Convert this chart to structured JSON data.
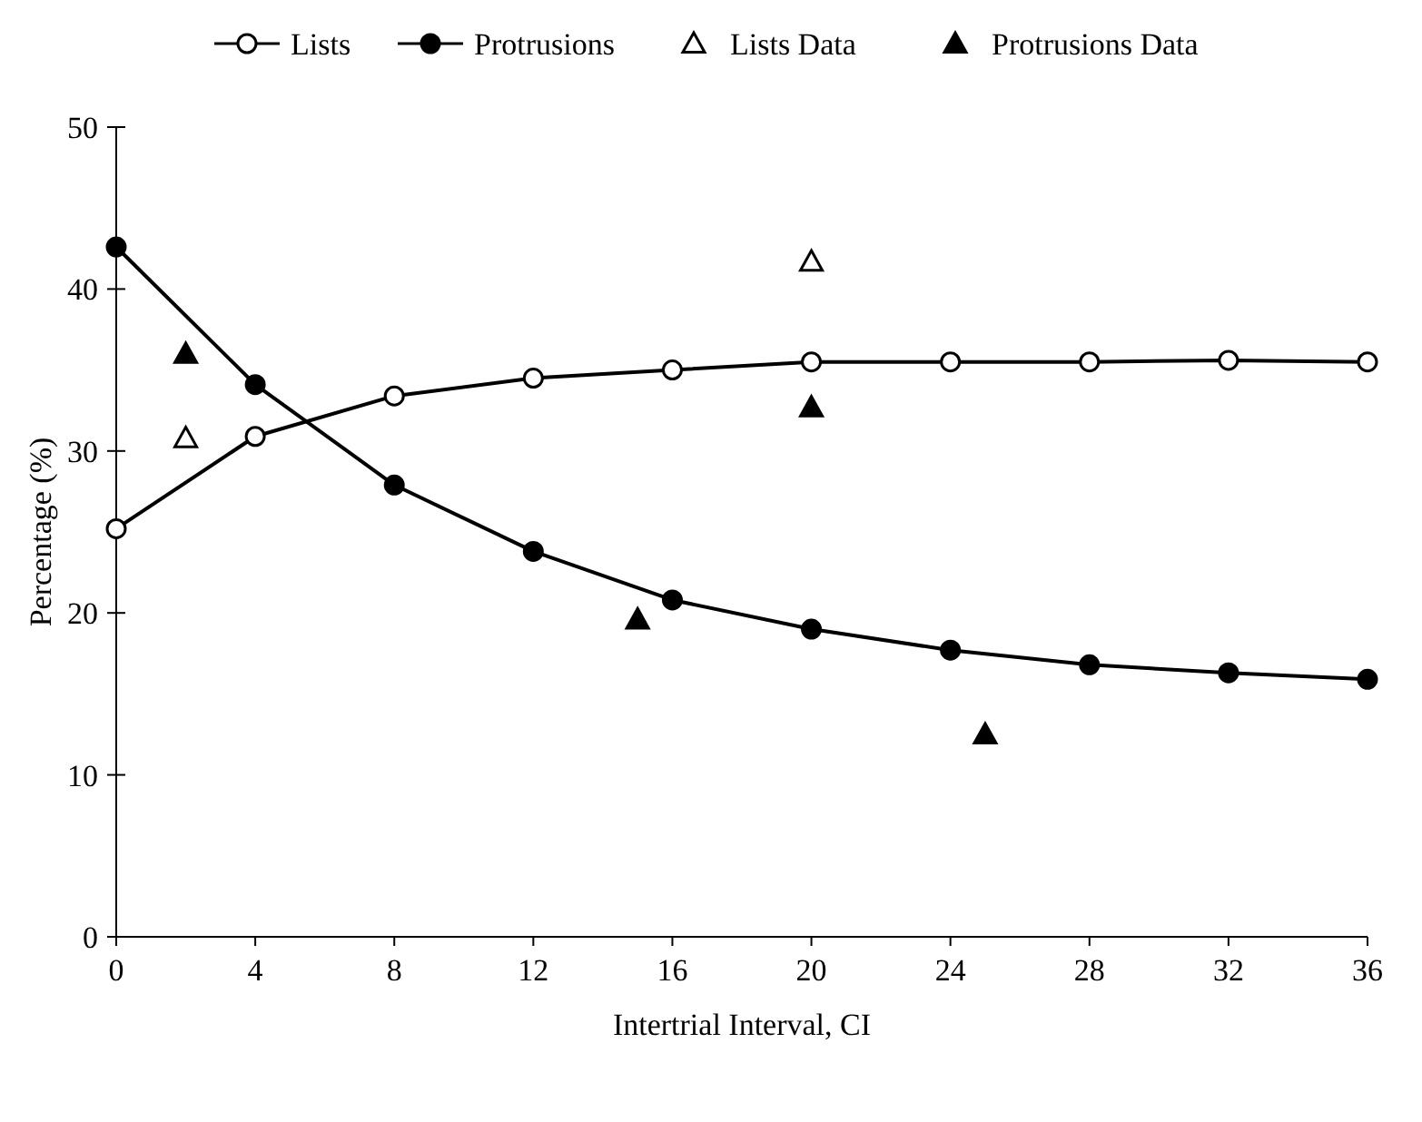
{
  "chart_data": {
    "type": "line",
    "xlabel": "Intertrial Interval, CI",
    "ylabel": "Percentage (%)",
    "x": [
      0,
      4,
      8,
      12,
      16,
      20,
      24,
      28,
      32,
      36
    ],
    "series": [
      {
        "name": "Lists",
        "color": "#ffffff",
        "marker": "circle",
        "values": [
          25.2,
          30.9,
          33.4,
          34.5,
          35.0,
          35.5,
          35.5,
          35.5,
          35.6,
          35.5
        ]
      },
      {
        "name": "Protrusions",
        "color": "#000000",
        "marker": "circle",
        "values": [
          42.6,
          34.1,
          27.9,
          23.8,
          20.8,
          19.0,
          17.7,
          16.8,
          16.3,
          15.9
        ]
      },
      {
        "name": "Lists Data",
        "type": "scatter",
        "color": "#ffffff",
        "marker": "triangle",
        "x": [
          2,
          20
        ],
        "values": [
          30.8,
          41.7
        ]
      },
      {
        "name": "Protrusions Data",
        "type": "scatter",
        "color": "#000000",
        "marker": "triangle",
        "x": [
          2,
          15,
          20,
          25
        ],
        "values": [
          36.0,
          19.6,
          32.7,
          12.5
        ]
      }
    ],
    "xlim": [
      0,
      36
    ],
    "xticks": [
      0,
      4,
      8,
      12,
      16,
      20,
      24,
      28,
      32,
      36
    ],
    "ylim": [
      0,
      50
    ],
    "yticks": [
      0,
      10,
      20,
      30,
      40,
      50
    ],
    "grid": false,
    "legend": "top"
  }
}
